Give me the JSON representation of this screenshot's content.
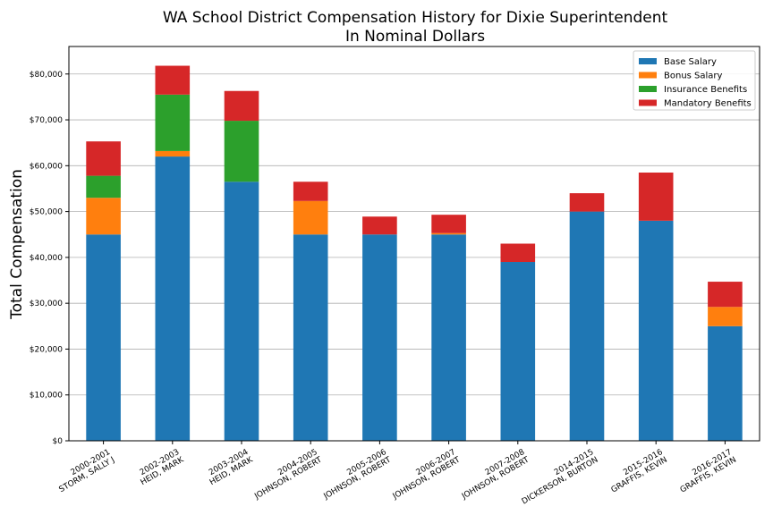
{
  "chart_data": {
    "type": "bar",
    "stacked": true,
    "title": "WA School District Compensation History for Dixie Superintendent",
    "subtitle": "In Nominal Dollars",
    "ylabel": "Total Compensation",
    "xlabel": "",
    "ylim": [
      0,
      86000
    ],
    "grid": true,
    "legend_position": "top-right",
    "y_ticks": [
      0,
      10000,
      20000,
      30000,
      40000,
      50000,
      60000,
      70000,
      80000
    ],
    "y_tick_labels": [
      "$0",
      "$10,000",
      "$20,000",
      "$30,000",
      "$40,000",
      "$50,000",
      "$60,000",
      "$70,000",
      "$80,000"
    ],
    "categories": [
      {
        "year": "2000-2001",
        "name": "STORM, SALLY J"
      },
      {
        "year": "2002-2003",
        "name": "HEID, MARK"
      },
      {
        "year": "2003-2004",
        "name": "HEID, MARK"
      },
      {
        "year": "2004-2005",
        "name": "JOHNSON, ROBERT"
      },
      {
        "year": "2005-2006",
        "name": "JOHNSON, ROBERT"
      },
      {
        "year": "2006-2007",
        "name": "JOHNSON, ROBERT"
      },
      {
        "year": "2007-2008",
        "name": "JOHNSON, ROBERT"
      },
      {
        "year": "2014-2015",
        "name": "DICKERSON, BURTON"
      },
      {
        "year": "2015-2016",
        "name": "GRAFFIS, KEVIN"
      },
      {
        "year": "2016-2017",
        "name": "GRAFFIS, KEVIN"
      }
    ],
    "series": [
      {
        "name": "Base Salary",
        "color": "#1f77b4",
        "values": [
          45000,
          62000,
          56500,
          45000,
          45000,
          45000,
          39000,
          50000,
          48000,
          25000
        ]
      },
      {
        "name": "Bonus Salary",
        "color": "#ff7f0e",
        "values": [
          8000,
          1200,
          0,
          7300,
          0,
          300,
          0,
          0,
          0,
          4200
        ]
      },
      {
        "name": "Insurance Benefits",
        "color": "#2ca02c",
        "values": [
          4800,
          12300,
          13300,
          0,
          0,
          0,
          0,
          0,
          0,
          0
        ]
      },
      {
        "name": "Mandatory Benefits",
        "color": "#d62728",
        "values": [
          7500,
          6300,
          6500,
          4200,
          3900,
          4000,
          4000,
          4000,
          10500,
          5500
        ]
      }
    ]
  }
}
